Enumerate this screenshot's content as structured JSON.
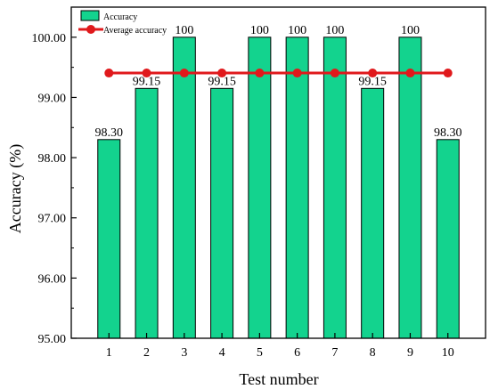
{
  "chart_data": {
    "type": "bar",
    "xlabel": "Test number",
    "ylabel": "Accuracy (%)",
    "categories": [
      "1",
      "2",
      "3",
      "4",
      "5",
      "6",
      "7",
      "8",
      "9",
      "10"
    ],
    "ylim": [
      95,
      100.5
    ],
    "yticks": [
      "95.00",
      "96.00",
      "97.00",
      "98.00",
      "99.00",
      "100.00"
    ],
    "series": [
      {
        "name": "Accuracy",
        "type": "bar",
        "color": "#13d38e",
        "values": [
          98.3,
          99.15,
          100,
          99.15,
          100,
          100,
          100,
          99.15,
          100,
          98.3
        ],
        "labels": [
          "98.30",
          "99.15",
          "100",
          "99.15",
          "100",
          "100",
          "100",
          "99.15",
          "100",
          "98.30"
        ]
      },
      {
        "name": "Average accuracy",
        "type": "line",
        "color": "#e0191c",
        "marker": "circle",
        "values": [
          99.405,
          99.405,
          99.405,
          99.405,
          99.405,
          99.405,
          99.405,
          99.405,
          99.405,
          99.405
        ]
      }
    ],
    "legend_position": "top-left",
    "grid": false
  }
}
